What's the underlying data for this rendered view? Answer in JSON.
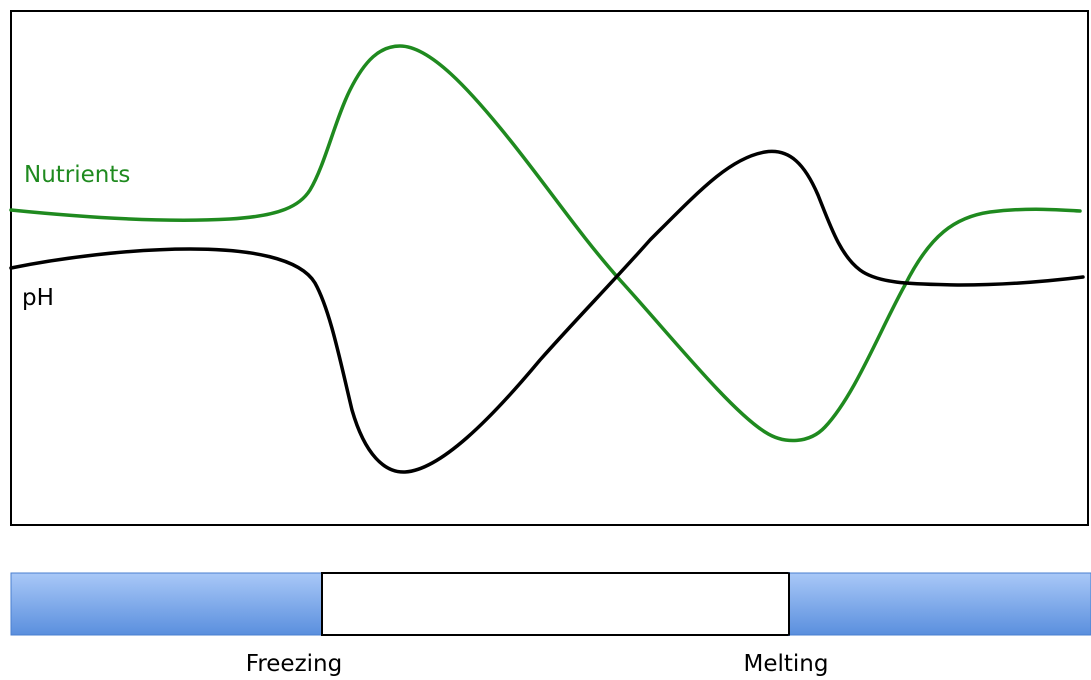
{
  "colors": {
    "nutrients": "#1f8a1f",
    "ph": "#000000",
    "ice_top": "#a9c8f7",
    "ice_bottom": "#5a8fde",
    "water": "#ffffff",
    "frame": "#000000"
  },
  "series": {
    "nutrients": {
      "label": "Nutrients"
    },
    "ph": {
      "label": "pH"
    }
  },
  "timeline": {
    "freezing_label": "Freezing",
    "melting_label": "Melting"
  }
}
